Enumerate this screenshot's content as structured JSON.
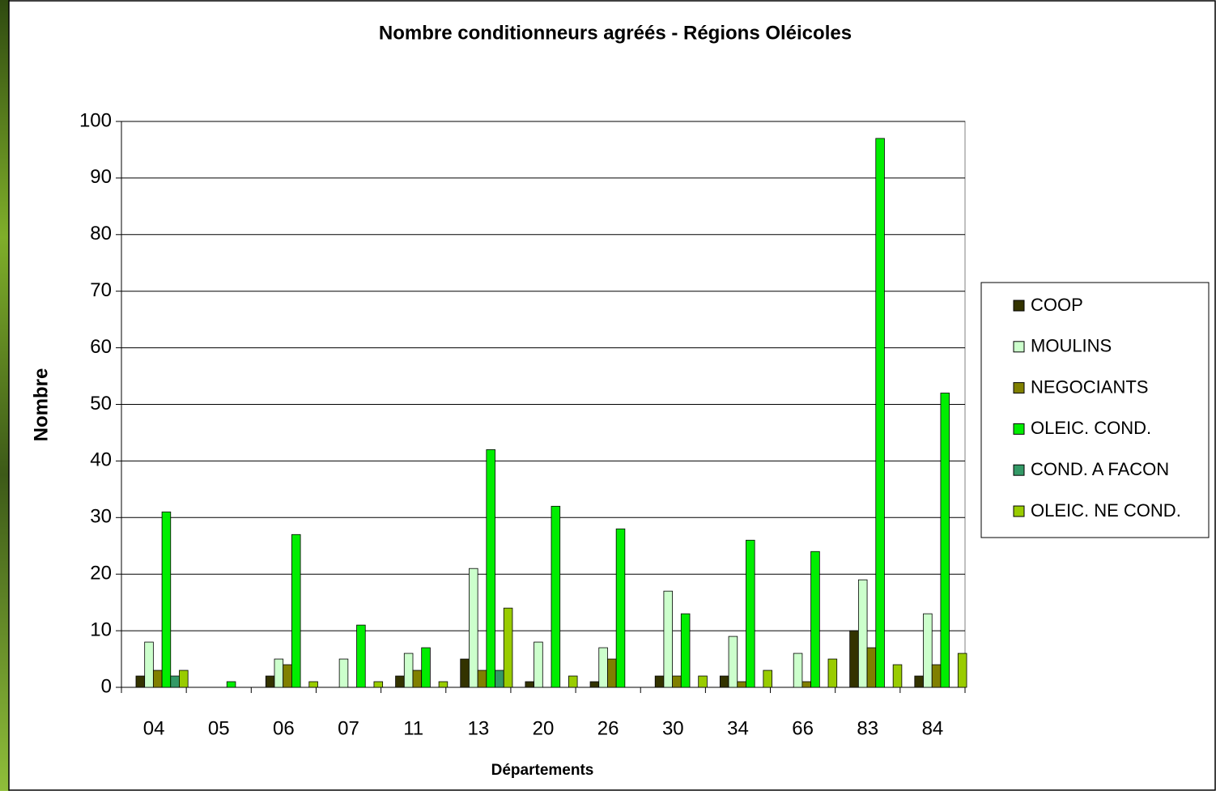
{
  "chart_data": {
    "type": "bar",
    "title": "Nombre conditionneurs agréés - Régions Oléicoles",
    "x_label": "Départements",
    "y_label": "Nombre",
    "categories": [
      "04",
      "05",
      "06",
      "07",
      "11",
      "13",
      "20",
      "26",
      "30",
      "34",
      "66",
      "83",
      "84"
    ],
    "series": [
      {
        "name": "COOP",
        "color": "#333300",
        "values": [
          2,
          0,
          2,
          0,
          2,
          5,
          1,
          1,
          2,
          2,
          0,
          10,
          2
        ]
      },
      {
        "name": "MOULINS",
        "color": "#ccffcc",
        "values": [
          8,
          0,
          5,
          5,
          6,
          21,
          8,
          7,
          17,
          9,
          6,
          19,
          13
        ]
      },
      {
        "name": "NEGOCIANTS",
        "color": "#808000",
        "values": [
          3,
          0,
          4,
          0,
          3,
          3,
          0,
          5,
          2,
          1,
          1,
          7,
          4
        ]
      },
      {
        "name": "OLEIC. COND.",
        "color": "#00ee00",
        "values": [
          31,
          1,
          27,
          11,
          7,
          42,
          32,
          28,
          13,
          26,
          24,
          97,
          52
        ]
      },
      {
        "name": "COND. A FACON",
        "color": "#339966",
        "values": [
          2,
          0,
          0,
          0,
          0,
          3,
          0,
          0,
          0,
          0,
          0,
          0,
          0
        ]
      },
      {
        "name": "OLEIC. NE COND.",
        "color": "#99cc00",
        "values": [
          3,
          0,
          1,
          1,
          1,
          14,
          2,
          0,
          2,
          3,
          5,
          4,
          6
        ]
      }
    ],
    "ylim": [
      0,
      100
    ],
    "yticks": [
      0,
      10,
      20,
      30,
      40,
      50,
      60,
      70,
      80,
      90,
      100
    ],
    "grid": true,
    "legend": "right"
  }
}
